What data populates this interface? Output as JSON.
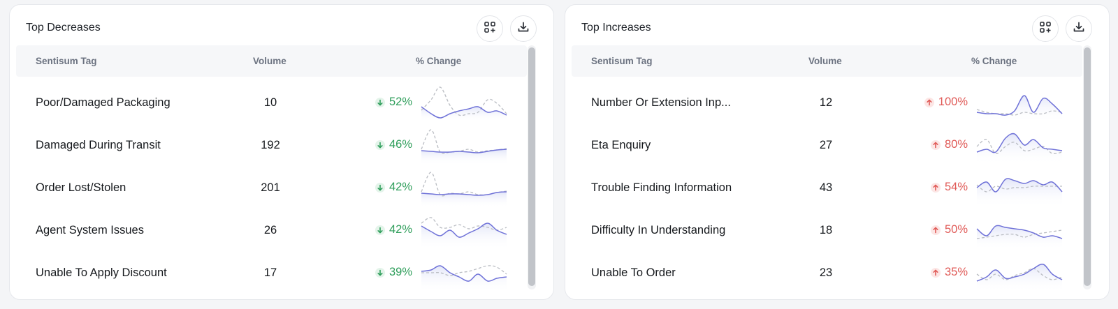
{
  "colors": {
    "decrease": "#2f9e5b",
    "increase": "#e05a57",
    "current_line": "#6f72d8",
    "previous_line": "#b9bcc2"
  },
  "icons": [
    "add-widget-icon",
    "download-icon",
    "arrow-down-icon",
    "arrow-up-icon"
  ],
  "headers": {
    "tag": "Sentisum Tag",
    "volume": "Volume",
    "change": "% Change"
  },
  "panels": [
    {
      "title": "Top Decreases",
      "direction": "down",
      "rows": [
        {
          "tag": "Poor/Damaged Packaging",
          "volume": "10",
          "change": "52%",
          "current": [
            30,
            40,
            46,
            40,
            36,
            33,
            30,
            38,
            36,
            42
          ],
          "previous": [
            35,
            20,
            2,
            28,
            42,
            40,
            38,
            20,
            25,
            40
          ]
        },
        {
          "tag": "Damaged During Transit",
          "volume": "192",
          "change": "46%",
          "current": [
            32,
            33,
            34,
            34,
            33,
            34,
            35,
            33,
            31,
            30
          ],
          "previous": [
            30,
            2,
            34,
            34,
            33,
            30,
            34,
            32,
            31,
            29
          ]
        },
        {
          "tag": "Order Lost/Stolen",
          "volume": "201",
          "change": "42%",
          "current": [
            32,
            33,
            34,
            33,
            33,
            34,
            35,
            34,
            31,
            30
          ],
          "previous": [
            30,
            2,
            34,
            32,
            33,
            30,
            34,
            34,
            31,
            29
          ]
        },
        {
          "tag": "Agent System Issues",
          "volume": "26",
          "change": "42%",
          "current": [
            18,
            26,
            32,
            24,
            34,
            28,
            22,
            14,
            24,
            30
          ],
          "previous": [
            14,
            6,
            20,
            20,
            16,
            22,
            18,
            20,
            24,
            20
          ]
        },
        {
          "tag": "Unable To Apply Discount",
          "volume": "17",
          "change": "39%",
          "current": [
            22,
            20,
            14,
            24,
            30,
            36,
            26,
            36,
            32,
            30
          ],
          "previous": [
            24,
            24,
            24,
            28,
            24,
            22,
            18,
            14,
            16,
            26
          ]
        }
      ]
    },
    {
      "title": "Top Increases",
      "direction": "up",
      "rows": [
        {
          "tag": "Number Or Extension Inp...",
          "volume": "12",
          "change": "100%",
          "current": [
            38,
            40,
            40,
            42,
            36,
            14,
            38,
            18,
            26,
            40
          ],
          "previous": [
            34,
            38,
            40,
            40,
            42,
            38,
            40,
            40,
            36,
            38
          ]
        },
        {
          "tag": "Eta Enquiry",
          "volume": "27",
          "change": "80%",
          "current": [
            34,
            30,
            34,
            14,
            8,
            24,
            16,
            28,
            30,
            32
          ],
          "previous": [
            26,
            16,
            36,
            26,
            20,
            32,
            30,
            26,
            36,
            34
          ]
        },
        {
          "tag": "Trouble Finding Information",
          "volume": "43",
          "change": "54%",
          "current": [
            24,
            16,
            30,
            12,
            14,
            18,
            14,
            20,
            16,
            30
          ],
          "previous": [
            20,
            30,
            22,
            26,
            24,
            24,
            22,
            22,
            22,
            22
          ]
        },
        {
          "tag": "Difficulty In Understanding",
          "volume": "18",
          "change": "50%",
          "current": [
            22,
            32,
            18,
            20,
            22,
            24,
            28,
            34,
            32,
            36
          ],
          "previous": [
            36,
            34,
            32,
            30,
            30,
            34,
            30,
            28,
            26,
            24
          ]
        },
        {
          "tag": "Unable To Order",
          "volume": "23",
          "change": "35%",
          "current": [
            36,
            30,
            20,
            32,
            30,
            26,
            18,
            12,
            26,
            34
          ],
          "previous": [
            26,
            34,
            26,
            34,
            28,
            24,
            18,
            28,
            34,
            30
          ]
        }
      ]
    }
  ]
}
